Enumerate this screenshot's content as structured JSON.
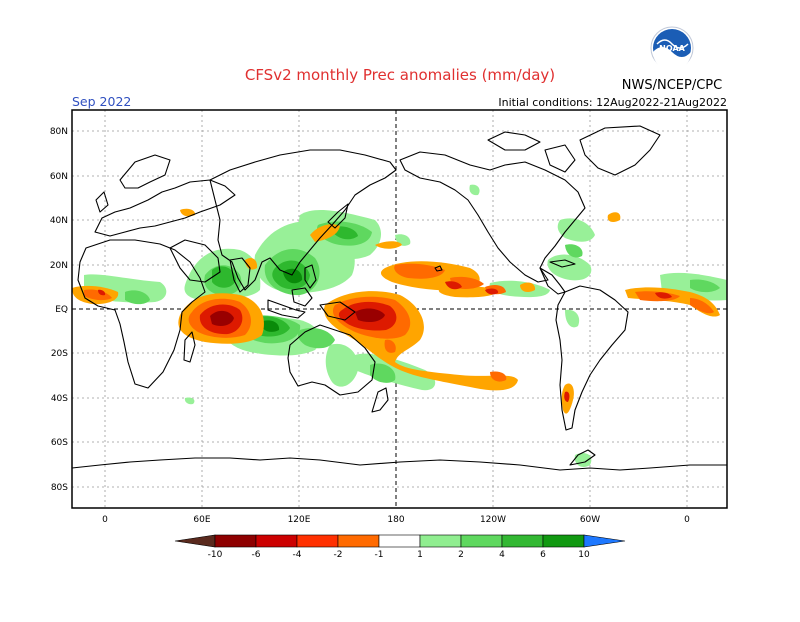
{
  "header": {
    "title": "CFSv2 monthly Prec anomalies (mm/day)",
    "month": "Sep 2022",
    "initial_conditions": "Initial conditions: 12Aug2022-21Aug2022",
    "agency": "NWS/NCEP/CPC",
    "logo_text": "NOAA"
  },
  "axes": {
    "lat_labels": [
      "80N",
      "60N",
      "40N",
      "20N",
      "EQ",
      "20S",
      "40S",
      "60S",
      "80S"
    ],
    "lon_labels": [
      "0",
      "60E",
      "120E",
      "180",
      "120W",
      "60W",
      "0"
    ]
  },
  "colorbar": {
    "labels": [
      "-10",
      "-6",
      "-4",
      "-2",
      "-1",
      "1",
      "2",
      "4",
      "6",
      "10"
    ],
    "colors": [
      "#5a2a1e",
      "#8e0000",
      "#cc0000",
      "#ff3000",
      "#ff6a00",
      "#ffa000",
      "#ffffff",
      "#90ee90",
      "#5fd85f",
      "#33b833",
      "#119911",
      "#007700",
      "#1e78ff"
    ]
  },
  "anomaly_colors": {
    "dry_extreme": "#990000",
    "dry_strong": "#dd1a00",
    "dry_moderate": "#ff6a00",
    "dry_weak": "#ffa500",
    "wet_weak": "#98f098",
    "wet_moderate": "#5fd85f",
    "wet_strong": "#2eb82e",
    "wet_extreme": "#0a8a0a"
  }
}
